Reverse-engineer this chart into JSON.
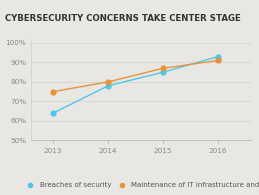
{
  "title": "CYBERSECURITY CONCERNS TAKE CENTER STAGE",
  "years": [
    2013,
    2014,
    2015,
    2016
  ],
  "series": [
    {
      "label": "Breaches of security",
      "values": [
        64,
        78,
        85,
        93
      ],
      "color": "#4ec8e8",
      "marker": "o"
    },
    {
      "label": "Maintenance of IT infrastructure and systems",
      "values": [
        75,
        80,
        87,
        91
      ],
      "color": "#e8923a",
      "marker": "o"
    }
  ],
  "ylim": [
    50,
    102
  ],
  "yticks": [
    50,
    60,
    70,
    80,
    90,
    100
  ],
  "background_color": "#e9e7e4",
  "plot_bg_color": "#e9e7e4",
  "title_fontsize": 6.2,
  "legend_fontsize": 5.0,
  "tick_fontsize": 5.2,
  "line_width": 1.0,
  "marker_size": 3.5
}
